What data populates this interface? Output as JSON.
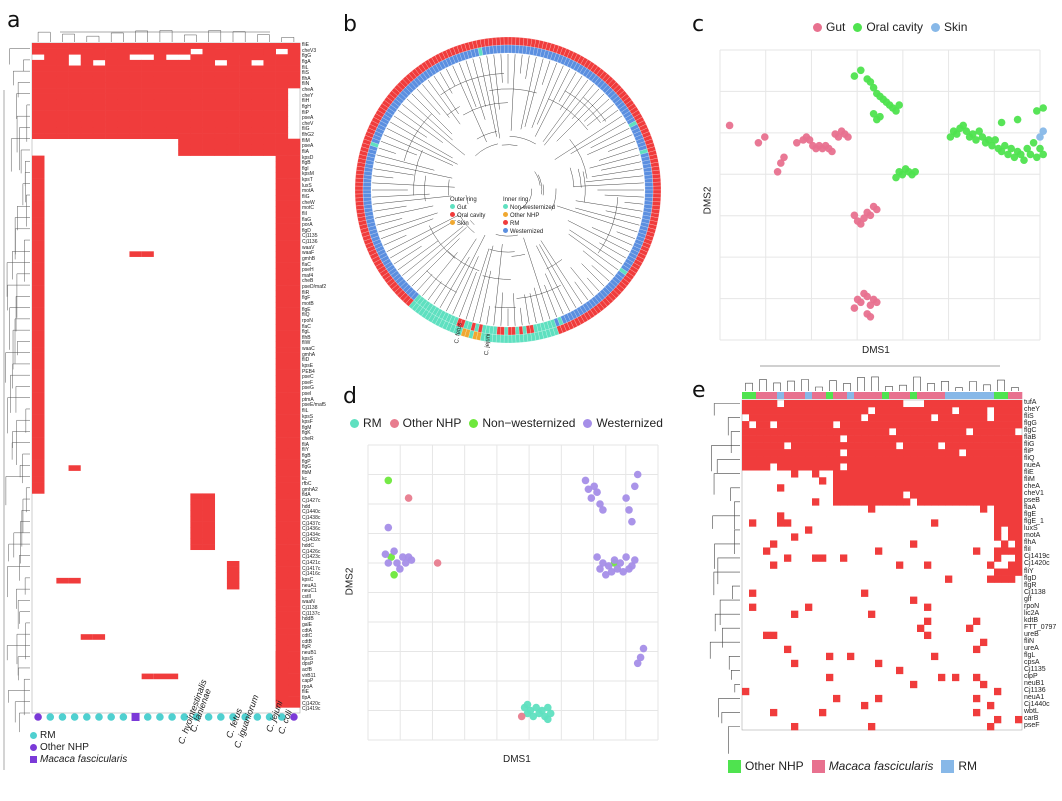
{
  "panels": {
    "a": "a",
    "b": "b",
    "c": "c",
    "d": "d",
    "e": "e"
  },
  "colors": {
    "red": "#f03c3c",
    "pink": "#e8718f",
    "green": "#4fe34f",
    "blue": "#87b8e8",
    "cyan": "#4fd0d0",
    "teal": "#5fe0c0",
    "rose": "#e87c8e",
    "lime": "#6ee83c",
    "lavender": "#a58ee8",
    "purple": "#7b3ad8",
    "orange": "#f0a830",
    "steel": "#5b8fe0",
    "grid": "#e6e6e6"
  },
  "panel_a": {
    "genes": [
      "fliE",
      "cheV3",
      "flgG",
      "flgA",
      "fliL",
      "fliS",
      "flhA",
      "fliN",
      "cheA",
      "cheY",
      "fliH",
      "flgH",
      "fliP",
      "pseA",
      "cheV",
      "fliG",
      "flhG2",
      "fliM",
      "pseA",
      "fliA",
      "kpsD",
      "flgB",
      "flgI",
      "kpsM",
      "kpsT",
      "luxS",
      "motA",
      "fliG",
      "cheW",
      "motC",
      "fliI",
      "flaG",
      "porA",
      "flgD",
      "Cj1135",
      "Cj1136",
      "waaV",
      "waaF",
      "gmhB",
      "flaC",
      "pseH",
      "maf4",
      "cheB",
      "pseD/maf2",
      "fliR",
      "flgF",
      "motB",
      "flgE",
      "fliQ",
      "rpoN",
      "flaC",
      "flgL",
      "flhB",
      "fliW",
      "waaC",
      "gmhA",
      "fliD",
      "kpsE",
      "PEB4",
      "pseC",
      "pseF",
      "pseG",
      "pseI",
      "ptmA",
      "pseE/maf5",
      "fliL",
      "kpsS",
      "kpsF",
      "flgM",
      "flgK",
      "cheR",
      "fliA",
      "fliY",
      "flgB",
      "flgP",
      "flgG",
      "flbM",
      "kc",
      "rfbC",
      "gmhA2",
      "fldA",
      "Cj1427c",
      "hdd",
      "Cj1440c",
      "Cj1438c",
      "Cj1437c",
      "Cj1436c",
      "Cj1434c",
      "Cj1432c",
      "hddC",
      "Cj1426c",
      "Cj1423c",
      "Cj1421c",
      "Cj1417c",
      "Cj1416c",
      "kpsC",
      "neuA1",
      "neuC1",
      "cstII",
      "waaN",
      "Cj1138",
      "Cj1137c",
      "hddB",
      "galE",
      "cdtA",
      "cdtC",
      "cdtB",
      "flgR",
      "neuB1",
      "kpsS",
      "dpsP",
      "acfB",
      "virB11",
      "capP",
      "rpoA",
      "fliE",
      "tlpA",
      "Cj1420c",
      "Cj1419c"
    ],
    "species": [
      "C. lanienae",
      "C. hyointestinalis",
      "C. fetus",
      "C. iguaniorum",
      "C. jejuni",
      "C. coli"
    ],
    "legend": [
      {
        "label": "RM",
        "color": "#4fd0d0"
      },
      {
        "label": "Other NHP",
        "color": "#7b3ad8"
      },
      {
        "label": "Macaca fascicularis",
        "color": "#7b3ad8"
      }
    ]
  },
  "panel_b": {
    "outer_title": "Outer ring",
    "outer_items": [
      {
        "label": "Gut",
        "color": "#5fe0c0"
      },
      {
        "label": "Oral cavity",
        "color": "#f03c3c"
      },
      {
        "label": "Skin",
        "color": "#f0a830"
      }
    ],
    "inner_title": "Inner ring",
    "inner_items": [
      {
        "label": "Non-westernized",
        "color": "#5fe0c0"
      },
      {
        "label": "Other NHP",
        "color": "#f0a830"
      },
      {
        "label": "RM",
        "color": "#f03c3c"
      },
      {
        "label": "Westernized",
        "color": "#5b8fe0"
      }
    ],
    "tree_labels": [
      "C. fetus",
      "C. jejuni"
    ]
  },
  "panel_c": {
    "legend": [
      {
        "label": "Gut",
        "color": "#e8718f"
      },
      {
        "label": "Oral cavity",
        "color": "#4fe34f"
      },
      {
        "label": "Skin",
        "color": "#87b8e8"
      }
    ],
    "xlabel": "DMS1",
    "ylabel": "DMS2"
  },
  "panel_d": {
    "legend": [
      {
        "label": "RM",
        "color": "#5fe0c0"
      },
      {
        "label": "Other NHP",
        "color": "#e87c8e"
      },
      {
        "label": "Non−westernized",
        "color": "#6ee83c"
      },
      {
        "label": "Westernized",
        "color": "#a58ee8"
      }
    ],
    "xlabel": "DMS1",
    "ylabel": "DMS2"
  },
  "panel_e": {
    "genes": [
      "tufA",
      "cheY",
      "fliS",
      "flgG",
      "flgC",
      "flaB",
      "fliG",
      "fliP",
      "fliQ",
      "nueA",
      "fliE",
      "fliM",
      "cheA",
      "cheV1",
      "pseB",
      "flaA",
      "flgE",
      "flgE_1",
      "luxS",
      "motA",
      "flhA",
      "fliI",
      "Cj1419c",
      "Cj1420c",
      "fliY",
      "flgD",
      "flgR",
      "Cj1138",
      "glf",
      "rpoN",
      "lic2A",
      "kdtB",
      "FTT_0797",
      "ureB",
      "fliN",
      "ureA",
      "flgL",
      "cpsA",
      "Cj1135",
      "clpP",
      "neuB1",
      "Cj1136",
      "neuA1",
      "Cj1440c",
      "wbtL",
      "carB",
      "pseF"
    ],
    "legend": [
      {
        "label": "Other NHP",
        "color": "#4fe34f"
      },
      {
        "label": "Macaca fascicularis",
        "color": "#e8718f"
      },
      {
        "label": "RM",
        "color": "#87b8e8"
      }
    ]
  },
  "chart_data": [
    {
      "type": "scatter",
      "title": "",
      "xlabel": "DMS1",
      "ylabel": "DMS2",
      "xlim": [
        0,
        100
      ],
      "ylim": [
        0,
        100
      ],
      "series": [
        {
          "name": "Gut",
          "color": "#e8718f",
          "points": [
            [
              3,
              74
            ],
            [
              12,
              68
            ],
            [
              14,
              70
            ],
            [
              18,
              58
            ],
            [
              19,
              61
            ],
            [
              20,
              63
            ],
            [
              24,
              68
            ],
            [
              26,
              69
            ],
            [
              27,
              70
            ],
            [
              28,
              69
            ],
            [
              29,
              67
            ],
            [
              30,
              66
            ],
            [
              31,
              67
            ],
            [
              32,
              66
            ],
            [
              33,
              67
            ],
            [
              34,
              66
            ],
            [
              35,
              65
            ],
            [
              36,
              71
            ],
            [
              37,
              70
            ],
            [
              38,
              72
            ],
            [
              39,
              71
            ],
            [
              40,
              70
            ],
            [
              42,
              43
            ],
            [
              43,
              41
            ],
            [
              44,
              40
            ],
            [
              45,
              42
            ],
            [
              46,
              44
            ],
            [
              47,
              43
            ],
            [
              48,
              46
            ],
            [
              49,
              45
            ],
            [
              42,
              11
            ],
            [
              43,
              14
            ],
            [
              44,
              13
            ],
            [
              45,
              16
            ],
            [
              46,
              15
            ],
            [
              47,
              12
            ],
            [
              48,
              14
            ],
            [
              49,
              13
            ],
            [
              46,
              9
            ],
            [
              47,
              8
            ]
          ]
        },
        {
          "name": "Oral cavity",
          "color": "#4fe34f",
          "points": [
            [
              42,
              91
            ],
            [
              44,
              93
            ],
            [
              46,
              90
            ],
            [
              47,
              89
            ],
            [
              48,
              87
            ],
            [
              49,
              85
            ],
            [
              50,
              84
            ],
            [
              51,
              83
            ],
            [
              52,
              82
            ],
            [
              53,
              81
            ],
            [
              54,
              80
            ],
            [
              55,
              79
            ],
            [
              56,
              81
            ],
            [
              48,
              78
            ],
            [
              49,
              76
            ],
            [
              50,
              77
            ],
            [
              72,
              70
            ],
            [
              73,
              72
            ],
            [
              74,
              71
            ],
            [
              75,
              73
            ],
            [
              76,
              74
            ],
            [
              77,
              72
            ],
            [
              78,
              70
            ],
            [
              79,
              71
            ],
            [
              80,
              69
            ],
            [
              81,
              72
            ],
            [
              82,
              70
            ],
            [
              83,
              68
            ],
            [
              84,
              69
            ],
            [
              85,
              67
            ],
            [
              86,
              69
            ],
            [
              87,
              66
            ],
            [
              88,
              65
            ],
            [
              89,
              67
            ],
            [
              90,
              64
            ],
            [
              91,
              66
            ],
            [
              92,
              63
            ],
            [
              93,
              65
            ],
            [
              94,
              64
            ],
            [
              95,
              62
            ],
            [
              96,
              66
            ],
            [
              97,
              64
            ],
            [
              98,
              68
            ],
            [
              99,
              63
            ],
            [
              100,
              66
            ],
            [
              101,
              64
            ],
            [
              88,
              75
            ],
            [
              93,
              76
            ],
            [
              99,
              79
            ],
            [
              101,
              80
            ],
            [
              55,
              56
            ],
            [
              56,
              58
            ],
            [
              57,
              57
            ],
            [
              58,
              59
            ],
            [
              59,
              58
            ],
            [
              60,
              57
            ],
            [
              61,
              58
            ]
          ]
        },
        {
          "name": "Skin",
          "color": "#87b8e8",
          "points": [
            [
              100,
              70
            ],
            [
              101,
              72
            ]
          ]
        }
      ]
    },
    {
      "type": "scatter",
      "title": "",
      "xlabel": "DMS1",
      "ylabel": "DMS2",
      "xlim": [
        0,
        100
      ],
      "ylim": [
        0,
        100
      ],
      "series": [
        {
          "name": "RM",
          "color": "#5fe0c0",
          "points": [
            [
              54,
              11
            ],
            [
              55,
              9
            ],
            [
              55,
              12
            ],
            [
              56,
              10
            ],
            [
              57,
              8
            ],
            [
              58,
              11
            ],
            [
              59,
              9
            ],
            [
              60,
              10
            ],
            [
              61,
              8
            ],
            [
              62,
              11
            ],
            [
              63,
              9
            ],
            [
              62,
              7
            ]
          ]
        },
        {
          "name": "Other NHP",
          "color": "#e87c8e",
          "points": [
            [
              14,
              82
            ],
            [
              24,
              60
            ],
            [
              53,
              8
            ]
          ]
        },
        {
          "name": "Non−westernized",
          "color": "#6ee83c",
          "points": [
            [
              7,
              88
            ],
            [
              8,
              62
            ],
            [
              9,
              56
            ],
            [
              85,
              60
            ]
          ]
        },
        {
          "name": "Westernized",
          "color": "#a58ee8",
          "points": [
            [
              7,
              72
            ],
            [
              6,
              63
            ],
            [
              7,
              60
            ],
            [
              9,
              64
            ],
            [
              10,
              60
            ],
            [
              11,
              58
            ],
            [
              12,
              62
            ],
            [
              13,
              60
            ],
            [
              14,
              62
            ],
            [
              15,
              61
            ],
            [
              75,
              88
            ],
            [
              76,
              85
            ],
            [
              77,
              82
            ],
            [
              78,
              86
            ],
            [
              79,
              84
            ],
            [
              80,
              80
            ],
            [
              81,
              78
            ],
            [
              79,
              62
            ],
            [
              80,
              58
            ],
            [
              81,
              60
            ],
            [
              82,
              56
            ],
            [
              83,
              59
            ],
            [
              84,
              57
            ],
            [
              85,
              61
            ],
            [
              86,
              58
            ],
            [
              87,
              60
            ],
            [
              88,
              57
            ],
            [
              89,
              62
            ],
            [
              90,
              58
            ],
            [
              91,
              59
            ],
            [
              92,
              61
            ],
            [
              89,
              82
            ],
            [
              90,
              78
            ],
            [
              91,
              74
            ],
            [
              92,
              86
            ],
            [
              93,
              90
            ],
            [
              95,
              31
            ],
            [
              93,
              26
            ],
            [
              94,
              28
            ]
          ]
        }
      ]
    }
  ]
}
